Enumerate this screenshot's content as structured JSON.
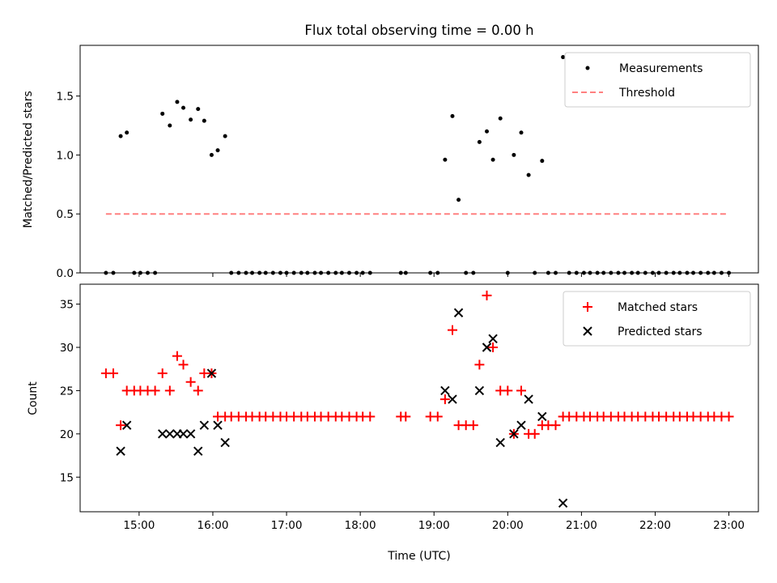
{
  "title": "Flux total observing time = 0.00 h",
  "xlabel": "Time (UTC)",
  "x_tick_labels": [
    "15:00",
    "16:00",
    "17:00",
    "18:00",
    "19:00",
    "20:00",
    "21:00",
    "22:00",
    "23:00"
  ],
  "chart_data": [
    {
      "type": "scatter",
      "ylabel": "Matched/Predicted stars",
      "xlim": [
        "14:12",
        "23:24"
      ],
      "ylim": [
        0,
        1.93
      ],
      "yticks": [
        "0.0",
        "0.5",
        "1.0",
        "1.5"
      ],
      "legend_position": "top-right",
      "series": [
        {
          "name": "Measurements",
          "color": "#000000",
          "marker": "dot",
          "points": [
            [
              "14:33",
              0
            ],
            [
              "14:39",
              0
            ],
            [
              "14:45",
              1.16
            ],
            [
              "14:50",
              1.19
            ],
            [
              "14:56",
              0
            ],
            [
              "15:01",
              0
            ],
            [
              "15:07",
              0
            ],
            [
              "15:13",
              0
            ],
            [
              "15:19",
              1.35
            ],
            [
              "15:25",
              1.25
            ],
            [
              "15:31",
              1.45
            ],
            [
              "15:36",
              1.4
            ],
            [
              "15:42",
              1.3
            ],
            [
              "15:48",
              1.39
            ],
            [
              "15:53",
              1.29
            ],
            [
              "15:59",
              1.0
            ],
            [
              "16:04",
              1.04
            ],
            [
              "16:10",
              1.16
            ],
            [
              "16:15",
              0
            ],
            [
              "16:21",
              0
            ],
            [
              "16:27",
              0
            ],
            [
              "16:32",
              0
            ],
            [
              "16:38",
              0
            ],
            [
              "16:43",
              0
            ],
            [
              "16:49",
              0
            ],
            [
              "16:55",
              0
            ],
            [
              "17:00",
              0
            ],
            [
              "17:06",
              0
            ],
            [
              "17:12",
              0
            ],
            [
              "17:17",
              0
            ],
            [
              "17:23",
              0
            ],
            [
              "17:28",
              0
            ],
            [
              "17:34",
              0
            ],
            [
              "17:40",
              0
            ],
            [
              "17:45",
              0
            ],
            [
              "17:51",
              0
            ],
            [
              "17:57",
              0
            ],
            [
              "18:02",
              0
            ],
            [
              "18:08",
              0
            ],
            [
              "18:33",
              0
            ],
            [
              "18:37",
              0
            ],
            [
              "18:57",
              0
            ],
            [
              "19:03",
              0
            ],
            [
              "19:09",
              0.96
            ],
            [
              "19:15",
              1.33
            ],
            [
              "19:20",
              0.62
            ],
            [
              "19:26",
              0
            ],
            [
              "19:32",
              0
            ],
            [
              "19:37",
              1.11
            ],
            [
              "19:43",
              1.2
            ],
            [
              "19:48",
              0.96
            ],
            [
              "19:54",
              1.31
            ],
            [
              "20:00",
              0
            ],
            [
              "20:05",
              1.0
            ],
            [
              "20:11",
              1.19
            ],
            [
              "20:17",
              0.83
            ],
            [
              "20:22",
              0
            ],
            [
              "20:28",
              0.95
            ],
            [
              "20:33",
              0
            ],
            [
              "20:39",
              0
            ],
            [
              "20:45",
              1.83
            ],
            [
              "20:50",
              0
            ],
            [
              "20:56",
              0
            ],
            [
              "21:02",
              0
            ],
            [
              "21:07",
              0
            ],
            [
              "21:13",
              0
            ],
            [
              "21:18",
              0
            ],
            [
              "21:24",
              0
            ],
            [
              "21:30",
              0
            ],
            [
              "21:35",
              0
            ],
            [
              "21:41",
              0
            ],
            [
              "21:46",
              0
            ],
            [
              "21:52",
              0
            ],
            [
              "21:58",
              0
            ],
            [
              "22:03",
              0
            ],
            [
              "22:09",
              0
            ],
            [
              "22:15",
              0
            ],
            [
              "22:20",
              0
            ],
            [
              "22:26",
              0
            ],
            [
              "22:31",
              0
            ],
            [
              "22:37",
              0
            ],
            [
              "22:43",
              0
            ],
            [
              "22:48",
              0
            ],
            [
              "22:54",
              0
            ],
            [
              "23:00",
              0
            ]
          ]
        },
        {
          "name": "Threshold",
          "color": "#ff8080",
          "style": "dashed-line",
          "points": [
            [
              "14:33",
              0.5
            ],
            [
              "23:00",
              0.5
            ]
          ]
        }
      ]
    },
    {
      "type": "scatter",
      "ylabel": "Count",
      "xlim": [
        "14:12",
        "23:24"
      ],
      "ylim": [
        11,
        37.3
      ],
      "yticks": [
        "15",
        "20",
        "25",
        "30",
        "35"
      ],
      "legend_position": "top-right",
      "series": [
        {
          "name": "Matched stars",
          "color": "#ff0000",
          "marker": "plus",
          "points": [
            [
              "14:33",
              27
            ],
            [
              "14:39",
              27
            ],
            [
              "14:45",
              21
            ],
            [
              "14:50",
              25
            ],
            [
              "14:56",
              25
            ],
            [
              "15:01",
              25
            ],
            [
              "15:07",
              25
            ],
            [
              "15:13",
              25
            ],
            [
              "15:19",
              27
            ],
            [
              "15:25",
              25
            ],
            [
              "15:31",
              29
            ],
            [
              "15:36",
              28
            ],
            [
              "15:42",
              26
            ],
            [
              "15:48",
              25
            ],
            [
              "15:53",
              27
            ],
            [
              "15:59",
              27
            ],
            [
              "16:04",
              22
            ],
            [
              "16:10",
              22
            ],
            [
              "16:15",
              22
            ],
            [
              "16:21",
              22
            ],
            [
              "16:27",
              22
            ],
            [
              "16:32",
              22
            ],
            [
              "16:38",
              22
            ],
            [
              "16:43",
              22
            ],
            [
              "16:49",
              22
            ],
            [
              "16:55",
              22
            ],
            [
              "17:00",
              22
            ],
            [
              "17:06",
              22
            ],
            [
              "17:12",
              22
            ],
            [
              "17:17",
              22
            ],
            [
              "17:23",
              22
            ],
            [
              "17:28",
              22
            ],
            [
              "17:34",
              22
            ],
            [
              "17:40",
              22
            ],
            [
              "17:45",
              22
            ],
            [
              "17:51",
              22
            ],
            [
              "17:57",
              22
            ],
            [
              "18:02",
              22
            ],
            [
              "18:08",
              22
            ],
            [
              "18:33",
              22
            ],
            [
              "18:37",
              22
            ],
            [
              "18:57",
              22
            ],
            [
              "19:03",
              22
            ],
            [
              "19:09",
              24
            ],
            [
              "19:15",
              32
            ],
            [
              "19:20",
              21
            ],
            [
              "19:26",
              21
            ],
            [
              "19:32",
              21
            ],
            [
              "19:37",
              28
            ],
            [
              "19:43",
              36
            ],
            [
              "19:48",
              30
            ],
            [
              "19:54",
              25
            ],
            [
              "20:00",
              25
            ],
            [
              "20:05",
              20
            ],
            [
              "20:11",
              25
            ],
            [
              "20:17",
              20
            ],
            [
              "20:22",
              20
            ],
            [
              "20:28",
              21
            ],
            [
              "20:33",
              21
            ],
            [
              "20:39",
              21
            ],
            [
              "20:45",
              22
            ],
            [
              "20:50",
              22
            ],
            [
              "20:56",
              22
            ],
            [
              "21:02",
              22
            ],
            [
              "21:07",
              22
            ],
            [
              "21:13",
              22
            ],
            [
              "21:18",
              22
            ],
            [
              "21:24",
              22
            ],
            [
              "21:30",
              22
            ],
            [
              "21:35",
              22
            ],
            [
              "21:41",
              22
            ],
            [
              "21:46",
              22
            ],
            [
              "21:52",
              22
            ],
            [
              "21:58",
              22
            ],
            [
              "22:03",
              22
            ],
            [
              "22:09",
              22
            ],
            [
              "22:15",
              22
            ],
            [
              "22:20",
              22
            ],
            [
              "22:26",
              22
            ],
            [
              "22:31",
              22
            ],
            [
              "22:37",
              22
            ],
            [
              "22:43",
              22
            ],
            [
              "22:48",
              22
            ],
            [
              "22:54",
              22
            ],
            [
              "23:00",
              22
            ]
          ]
        },
        {
          "name": "Predicted stars",
          "color": "#000000",
          "marker": "x",
          "points": [
            [
              "14:45",
              18
            ],
            [
              "14:50",
              21
            ],
            [
              "15:19",
              20
            ],
            [
              "15:25",
              20
            ],
            [
              "15:31",
              20
            ],
            [
              "15:36",
              20
            ],
            [
              "15:42",
              20
            ],
            [
              "15:48",
              18
            ],
            [
              "15:53",
              21
            ],
            [
              "15:59",
              27
            ],
            [
              "16:04",
              21
            ],
            [
              "16:10",
              19
            ],
            [
              "19:09",
              25
            ],
            [
              "19:15",
              24
            ],
            [
              "19:20",
              34
            ],
            [
              "19:37",
              25
            ],
            [
              "19:43",
              30
            ],
            [
              "19:48",
              31
            ],
            [
              "19:54",
              19
            ],
            [
              "20:05",
              20
            ],
            [
              "20:11",
              21
            ],
            [
              "20:17",
              24
            ],
            [
              "20:28",
              22
            ],
            [
              "20:45",
              12
            ]
          ]
        }
      ]
    }
  ]
}
